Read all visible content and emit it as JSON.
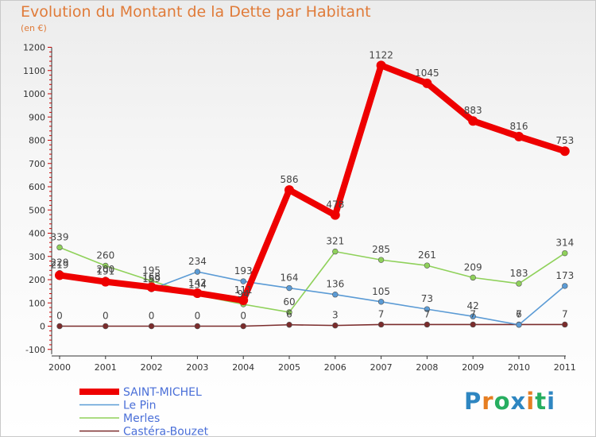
{
  "title": "Evolution du Montant de la Dette par Habitant",
  "subtitle": "(en €)",
  "logo": {
    "text": "Proxiti",
    "letters": [
      "P",
      "r",
      "o",
      "x",
      "i",
      "t",
      "i"
    ],
    "colors": [
      "#2e86c1",
      "#e67e22",
      "#27ae60",
      "#2e86c1",
      "#e67e22",
      "#27ae60",
      "#2e86c1"
    ]
  },
  "chart_data": {
    "type": "line",
    "title": "Evolution du Montant de la Dette par Habitant",
    "ylabel": "",
    "xlabel": "",
    "x": [
      "2000",
      "2001",
      "2002",
      "2003",
      "2004",
      "2005",
      "2006",
      "2007",
      "2008",
      "2009",
      "2010",
      "2011"
    ],
    "y_ticks": [
      "-100",
      "0",
      "100",
      "200",
      "300",
      "400",
      "500",
      "600",
      "700",
      "800",
      "900",
      "1000",
      "1100",
      "1200"
    ],
    "ylim": [
      -100,
      1200
    ],
    "grid": false,
    "legend_position": "bottom-left",
    "series": [
      {
        "name": "SAINT-MICHEL",
        "color": "#ee0000",
        "values": [
          219,
          191,
          168,
          142,
          111,
          586,
          478,
          1122,
          1045,
          883,
          816,
          753
        ],
        "labels": [
          "219",
          "191",
          "168",
          "142",
          "111",
          "586",
          "478",
          "1122",
          "1045",
          "883",
          "816",
          "753"
        ]
      },
      {
        "name": "Le Pin",
        "color": "#5b9bd5",
        "values": [
          229,
          200,
          159,
          234,
          193,
          164,
          136,
          105,
          73,
          42,
          6,
          173
        ],
        "labels": [
          "229",
          "200",
          "159",
          "234",
          "193",
          "164",
          "136",
          "105",
          "73",
          "42",
          "6",
          "173"
        ]
      },
      {
        "name": "Merles",
        "color": "#8fd15a",
        "values": [
          339,
          260,
          195,
          134,
          94,
          60,
          321,
          285,
          261,
          209,
          183,
          314
        ],
        "labels": [
          "339",
          "260",
          "195",
          "134",
          "94",
          "60",
          "321",
          "285",
          "261",
          "209",
          "183",
          "314"
        ]
      },
      {
        "name": "Castéra-Bouzet",
        "color": "#7b2c2c",
        "values": [
          0,
          0,
          0,
          0,
          0,
          6,
          3,
          7,
          7,
          7,
          7,
          7
        ],
        "labels": [
          "0",
          "0",
          "0",
          "0",
          "0",
          "6",
          "3",
          "7",
          "7",
          "7",
          "7",
          "7"
        ]
      }
    ]
  }
}
